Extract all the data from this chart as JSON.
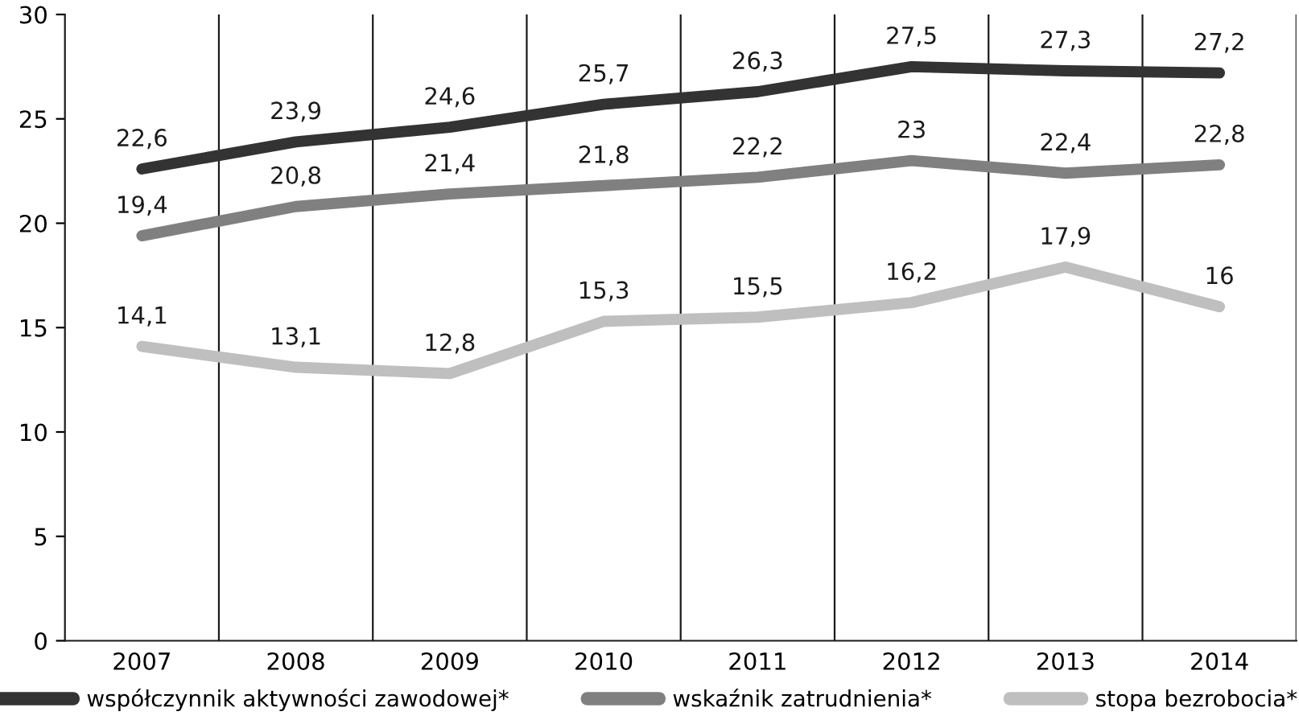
{
  "chart_data": {
    "type": "line",
    "categories": [
      "2007",
      "2008",
      "2009",
      "2010",
      "2011",
      "2012",
      "2013",
      "2014"
    ],
    "series": [
      {
        "name": "współczynnik aktywności zawodowej*",
        "color": "#333333",
        "values": [
          22.6,
          23.9,
          24.6,
          25.7,
          26.3,
          27.5,
          27.3,
          27.2
        ],
        "value_labels": [
          "22,6",
          "23,9",
          "24,6",
          "25,7",
          "26,3",
          "27,5",
          "27,3",
          "27,2"
        ]
      },
      {
        "name": "wskaźnik zatrudnienia*",
        "color": "#808080",
        "values": [
          19.4,
          20.8,
          21.4,
          21.8,
          22.2,
          23,
          22.4,
          22.8
        ],
        "value_labels": [
          "19,4",
          "20,8",
          "21,4",
          "21,8",
          "22,2",
          "23",
          "22,4",
          "22,8"
        ]
      },
      {
        "name": "stopa bezrobocia*",
        "color": "#bfbfbf",
        "values": [
          14.1,
          13.1,
          12.8,
          15.3,
          15.5,
          16.2,
          17.9,
          16
        ],
        "value_labels": [
          "14,1",
          "13,1",
          "12,8",
          "15,3",
          "15,5",
          "16,2",
          "17,9",
          "16"
        ]
      }
    ],
    "ylim": [
      0,
      30
    ],
    "yticks": [
      0,
      5,
      10,
      15,
      20,
      25,
      30
    ],
    "grid": "x",
    "legend": "bottom",
    "marker": "none",
    "line_style": "solid"
  }
}
